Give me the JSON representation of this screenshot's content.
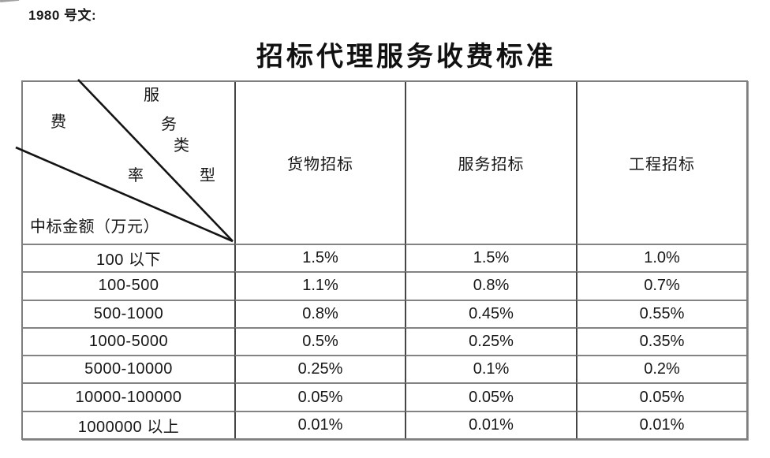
{
  "page": {
    "doc_number": "1980 号文:",
    "title": "招标代理服务收费标准"
  },
  "table": {
    "corner": {
      "service_type_chars": [
        "服",
        "务",
        "类",
        "型"
      ],
      "rate_chars": [
        "费",
        "率"
      ],
      "amount_label": "中标金额（万元）"
    },
    "columns": [
      "货物招标",
      "服务招标",
      "工程招标"
    ],
    "rows": [
      {
        "range": "100 以下",
        "values": [
          "1.5%",
          "1.5%",
          "1.0%"
        ]
      },
      {
        "range": "100-500",
        "values": [
          "1.1%",
          "0.8%",
          "0.7%"
        ]
      },
      {
        "range": "500-1000",
        "values": [
          "0.8%",
          "0.45%",
          "0.55%"
        ]
      },
      {
        "range": "1000-5000",
        "values": [
          "0.5%",
          "0.25%",
          "0.35%"
        ]
      },
      {
        "range": "5000-10000",
        "values": [
          "0.25%",
          "0.1%",
          "0.2%"
        ]
      },
      {
        "range": "10000-100000",
        "values": [
          "0.05%",
          "0.05%",
          "0.05%"
        ]
      },
      {
        "range": "1000000 以上",
        "values": [
          "0.01%",
          "0.01%",
          "0.01%"
        ]
      }
    ],
    "colors": {
      "outer_border": "#7e7e7e",
      "horizontal_grid": "#838383",
      "vertical_grid": "#454545",
      "diagonal_line": "#141414",
      "text": "#161616"
    }
  }
}
